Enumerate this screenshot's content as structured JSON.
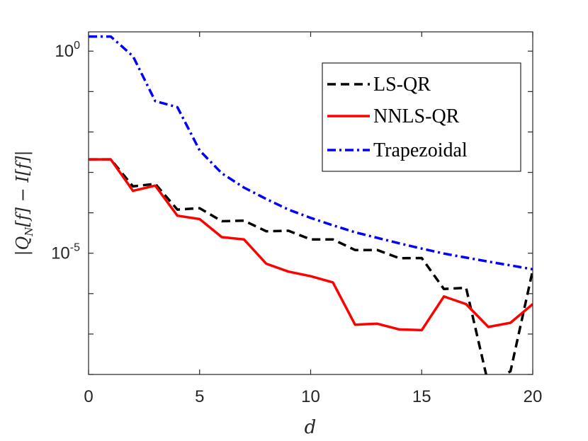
{
  "chart_data": {
    "type": "line",
    "xlabel": "d",
    "ylabel": "|Q_N[f] − I[f]|",
    "ylabel_parts": {
      "open": "|Q",
      "sub": "N",
      "mid": "[f] − I[f]|"
    },
    "xlim": [
      0,
      20
    ],
    "ylim": [
      1e-08,
      3.0
    ],
    "yscale": "log",
    "grid": false,
    "legend_position": "top-right",
    "x_ticks": [
      {
        "value": 0,
        "label": "0"
      },
      {
        "value": 5,
        "label": "5"
      },
      {
        "value": 10,
        "label": "10"
      },
      {
        "value": 15,
        "label": "15"
      },
      {
        "value": 20,
        "label": "20"
      }
    ],
    "y_ticks": [
      {
        "value": 1.0,
        "base": "10",
        "exp": "0"
      },
      {
        "value": 1e-05,
        "base": "10",
        "exp": "-5"
      }
    ],
    "x": [
      0,
      1,
      2,
      3,
      4,
      5,
      6,
      7,
      8,
      9,
      10,
      11,
      12,
      13,
      14,
      15,
      16,
      17,
      18,
      19,
      20
    ],
    "series": [
      {
        "name": "LS-QR",
        "color": "#000000",
        "style": "dashed",
        "values": [
          0.0021,
          0.0021,
          0.00045,
          0.00052,
          0.00012,
          0.00013,
          6.2e-05,
          6.4e-05,
          3.5e-05,
          3.6e-05,
          2.2e-05,
          2.2e-05,
          1.2e-05,
          1.2e-05,
          7.5e-06,
          7.6e-06,
          1.3e-06,
          1.4e-06,
          5.8e-09,
          1.2e-08,
          3.8e-06
        ]
      },
      {
        "name": "NNLS-QR",
        "color": "#ff0000",
        "style": "solid",
        "values": [
          0.0021,
          0.0021,
          0.00035,
          0.00047,
          8.5e-05,
          7e-05,
          2.5e-05,
          2.2e-05,
          5.5e-06,
          3.5e-06,
          2.7e-06,
          1.9e-06,
          1.7e-07,
          1.8e-07,
          1.3e-07,
          1.25e-07,
          8.5e-07,
          5.5e-07,
          1.5e-07,
          1.9e-07,
          5.5e-07
        ]
      },
      {
        "name": "Trapezoidal",
        "color": "#0000ff",
        "style": "dashdot",
        "values": [
          2.3,
          2.3,
          0.75,
          0.058,
          0.041,
          0.0035,
          0.00095,
          0.00042,
          0.00022,
          0.00012,
          7.5e-05,
          4.9e-05,
          3.3e-05,
          2.4e-05,
          1.75e-05,
          1.3e-05,
          9.8e-06,
          7.8e-06,
          6.2e-06,
          5e-06,
          4e-06
        ]
      }
    ]
  }
}
